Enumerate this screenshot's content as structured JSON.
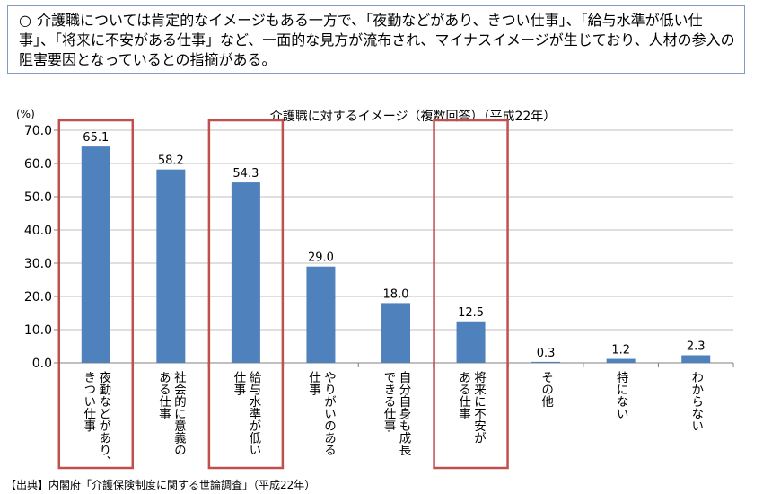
{
  "note": {
    "bullet": "○",
    "text": "介護職については肯定的なイメージもある一方で、「夜勤などがあり、きつい仕事」、「給与水準が低い仕事」、「将来に不安がある仕事」など、一面的な見方が流布され、マイナスイメージが生じており、人材の参入の阻害要因となっているとの指摘がある。"
  },
  "chart_data": {
    "type": "bar",
    "title": "介護職に対するイメージ（複数回答）（平成22年）",
    "ylabel": "(%)",
    "ylim": [
      0,
      70
    ],
    "yticks": [
      "0.0",
      "10.0",
      "20.0",
      "30.0",
      "40.0",
      "50.0",
      "60.0",
      "70.0"
    ],
    "categories": [
      "夜勤などがあり、きつい仕事",
      "社会的に意義のある仕事",
      "給与水準が低い仕事",
      "やりがいのある仕事",
      "自分自身も成長できる仕事",
      "将来に不安がある仕事",
      "その他",
      "特にない",
      "わからない"
    ],
    "label_lines": [
      [
        "夜勤などがあり、",
        "きつい仕事"
      ],
      [
        "社会的に意義の",
        "ある仕事"
      ],
      [
        "給与水準が低い",
        "仕事"
      ],
      [
        "やりがいのある",
        "仕事"
      ],
      [
        "自分自身も成長",
        "できる仕事"
      ],
      [
        "将来に不安が",
        "ある仕事"
      ],
      [
        "その他"
      ],
      [
        "特にない"
      ],
      [
        "わからない"
      ]
    ],
    "values": [
      65.1,
      58.2,
      54.3,
      29.0,
      18.0,
      12.5,
      0.3,
      1.2,
      2.3
    ],
    "value_labels": [
      "65.1",
      "58.2",
      "54.3",
      "29.0",
      "18.0",
      "12.5",
      "0.3",
      "1.2",
      "2.3"
    ],
    "highlighted": [
      0,
      2,
      5
    ],
    "grid": true,
    "bar_color": "#4f81bd",
    "highlight_color": "#c0504d"
  },
  "source": "【出典】内閣府「介護保険制度に関する世論調査」（平成22年）"
}
